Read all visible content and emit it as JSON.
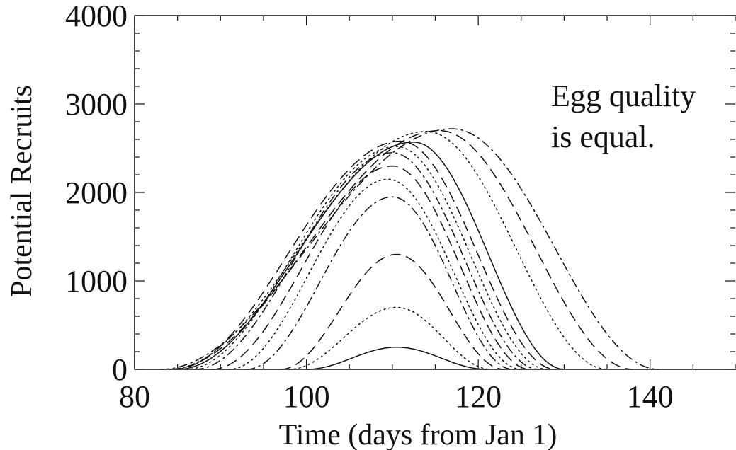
{
  "chart_data": {
    "type": "line",
    "xlabel": "Time (days from Jan 1)",
    "ylabel": "Potential Recruits",
    "xlim": [
      80,
      150
    ],
    "ylim": [
      0,
      4000
    ],
    "xticks": [
      80,
      100,
      120,
      140
    ],
    "yticks": [
      0,
      1000,
      2000,
      3000,
      4000
    ],
    "annotation": [
      "Egg quality",
      "is equal."
    ],
    "grid": false,
    "legend": "none",
    "line_color": "#111111",
    "series": [
      {
        "style": "solid",
        "x": [
          100,
          110.5,
          121
        ],
        "peak": 250
      },
      {
        "style": "dotted",
        "x": [
          98,
          110.5,
          121.5
        ],
        "peak": 700
      },
      {
        "style": "dashed",
        "x": [
          97,
          110.5,
          123
        ],
        "peak": 1300
      },
      {
        "style": "dashdot",
        "x": [
          93,
          110,
          124
        ],
        "peak": 1950
      },
      {
        "style": "dotted",
        "x": [
          91,
          109.5,
          125
        ],
        "peak": 2150
      },
      {
        "style": "dashed",
        "x": [
          89,
          110,
          126
        ],
        "peak": 2300
      },
      {
        "style": "dashdot",
        "x": [
          87,
          110,
          127
        ],
        "peak": 2450
      },
      {
        "style": "dotted",
        "x": [
          86,
          110.5,
          128
        ],
        "peak": 2520
      },
      {
        "style": "dashed",
        "x": [
          84.5,
          111,
          129
        ],
        "peak": 2580
      },
      {
        "style": "solid",
        "x": [
          85,
          112.5,
          130
        ],
        "peak": 2570
      },
      {
        "style": "dotted",
        "x": [
          84,
          114,
          135
        ],
        "peak": 2690
      },
      {
        "style": "dashed",
        "x": [
          84,
          115.5,
          138
        ],
        "peak": 2700
      },
      {
        "style": "dashdot",
        "x": [
          83,
          117,
          141
        ],
        "peak": 2720
      }
    ]
  }
}
